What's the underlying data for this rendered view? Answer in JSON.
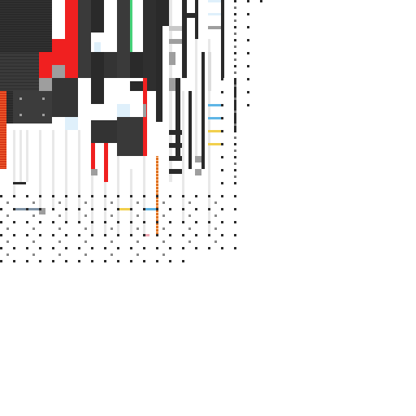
{
  "canvas": {
    "background": "#ffffff"
  },
  "palette": {
    "dark": "#2a2a2a",
    "dark_alt": "#3a3a3a",
    "mid_gray": "#9e9e9e",
    "light_gray": "#c8c8c8",
    "red": "#f02020",
    "green": "#46d27a",
    "light_blue": "#dff0fb",
    "sky_blue": "#5fb6e6",
    "yellow": "#f2d04e",
    "orange": "#e0601e",
    "pink": "#f0a8b4",
    "steel": "#7f93a6",
    "white": "#ffffff"
  }
}
